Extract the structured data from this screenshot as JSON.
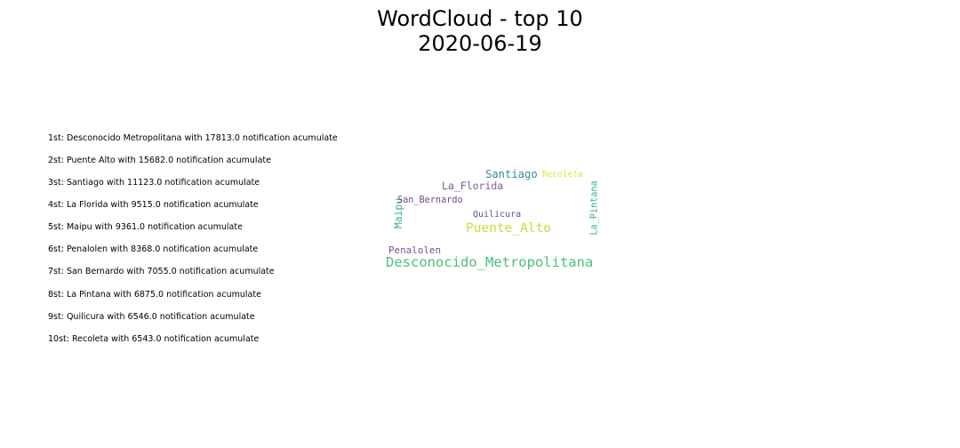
{
  "figure": {
    "title_line_1": "WordCloud - top 10",
    "title_line_2": "2020-06-19"
  },
  "chart_data": {
    "type": "wordcloud",
    "title": "WordCloud - top 10\n2020-06-19",
    "unit": "notification acumulate",
    "ranking": [
      "1st: Desconocido Metropolitana with 17813.0 notification acumulate",
      "2st: Puente Alto with 15682.0 notification acumulate",
      "3st: Santiago with 11123.0 notification acumulate",
      "4st: La Florida with 9515.0 notification acumulate",
      "5st: Maipu with 9361.0 notification acumulate",
      "6st: Penalolen with 8368.0 notification acumulate",
      "7st: San Bernardo with 7055.0 notification acumulate",
      "8st: La Pintana with 6875.0 notification acumulate",
      "9st: Quilicura with 6546.0 notification acumulate",
      "10st: Recoleta with 6543.0 notification acumulate"
    ],
    "words": [
      {
        "text": "Desconocido_Metropolitana",
        "value": 17813.0,
        "color": "#4cc07c",
        "vertical": false
      },
      {
        "text": "Puente_Alto",
        "value": 15682.0,
        "color": "#c6de3a",
        "vertical": false
      },
      {
        "text": "Santiago",
        "value": 11123.0,
        "color": "#3b8a9c",
        "vertical": false
      },
      {
        "text": "La_Florida",
        "value": 9515.0,
        "color": "#7b5a9c",
        "vertical": false
      },
      {
        "text": "Maipu",
        "value": 9361.0,
        "color": "#35b192",
        "vertical": true
      },
      {
        "text": "Penalolen",
        "value": 8368.0,
        "color": "#7a4f96",
        "vertical": false
      },
      {
        "text": "San_Bernardo",
        "value": 7055.0,
        "color": "#6f4a8e",
        "vertical": false
      },
      {
        "text": "La_Pintana",
        "value": 6875.0,
        "color": "#35b192",
        "vertical": true
      },
      {
        "text": "Quilicura",
        "value": 6546.0,
        "color": "#6f4a8e",
        "vertical": false
      },
      {
        "text": "Recoleta",
        "value": 6543.0,
        "color": "#e2e53a",
        "vertical": false
      }
    ]
  }
}
